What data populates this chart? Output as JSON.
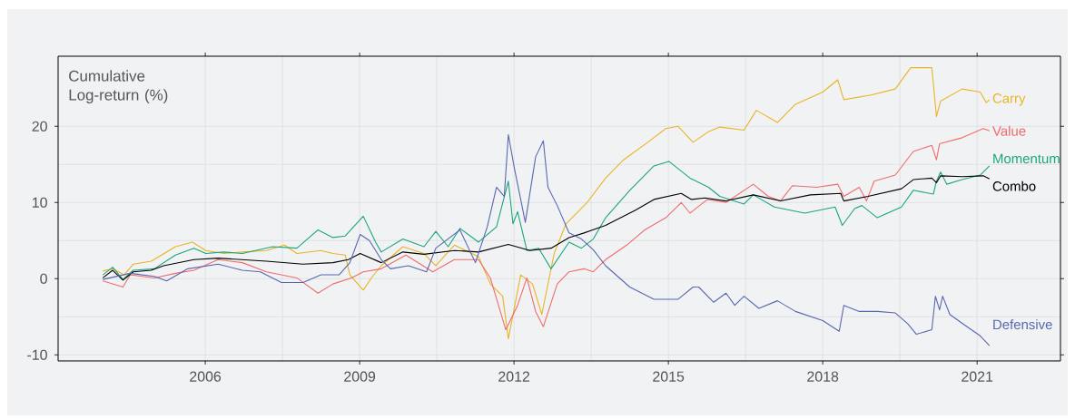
{
  "chart_data": {
    "type": "line",
    "ylabel": "Cumulative Log-return (%)",
    "xlim": [
      2003.14,
      2022.62
    ],
    "ylim": [
      -10.8,
      29.2
    ],
    "xticks": [
      2006,
      2009,
      2012,
      2015,
      2018,
      2021
    ],
    "yticks": [
      -10,
      0,
      10,
      20
    ],
    "grid": true,
    "legend": "right",
    "series": [
      {
        "name": "Carry",
        "color": "#ebb324",
        "x": [
          2004.01,
          2004.2,
          2004.42,
          2004.6,
          2004.95,
          2005.42,
          2005.75,
          2006.01,
          2006.36,
          2006.72,
          2007.19,
          2007.54,
          2007.78,
          2008.25,
          2008.48,
          2008.72,
          2008.81,
          2009.07,
          2009.25,
          2009.42,
          2009.84,
          2010.25,
          2010.48,
          2010.84,
          2011.31,
          2011.54,
          2011.78,
          2011.89,
          2012.13,
          2012.36,
          2012.54,
          2012.78,
          2013.01,
          2013.42,
          2013.78,
          2014.13,
          2014.6,
          2014.95,
          2015.19,
          2015.48,
          2015.78,
          2016.0,
          2016.47,
          2016.71,
          2017.12,
          2017.47,
          2018.0,
          2018.29,
          2018.41,
          2018.94,
          2019.41,
          2019.71,
          2020.12,
          2020.21,
          2020.29,
          2020.71,
          2021.06,
          2021.18,
          2021.24
        ],
        "values": [
          1.0,
          1.3,
          0.5,
          1.9,
          2.3,
          4.2,
          4.8,
          3.7,
          3.3,
          3.5,
          3.7,
          4.4,
          3.3,
          3.7,
          3.3,
          3.1,
          0.5,
          -1.5,
          0.3,
          1.7,
          4.2,
          3.3,
          1.7,
          4.4,
          2.9,
          -0.7,
          -2.3,
          -7.9,
          0.5,
          -0.7,
          -4.7,
          3.3,
          7.2,
          10.0,
          13.2,
          15.6,
          17.9,
          19.7,
          20.0,
          17.9,
          19.3,
          19.9,
          19.5,
          22.1,
          20.5,
          22.9,
          24.5,
          26.1,
          23.5,
          24.1,
          24.9,
          27.7,
          27.7,
          21.3,
          23.3,
          24.9,
          24.5,
          23.1,
          23.5
        ]
      },
      {
        "name": "Value",
        "color": "#f06b6d",
        "x": [
          2004.01,
          2004.4,
          2004.54,
          2005.01,
          2005.42,
          2005.78,
          2006.25,
          2006.72,
          2007.19,
          2007.78,
          2008.19,
          2008.48,
          2008.84,
          2009.07,
          2009.42,
          2009.9,
          2010.42,
          2010.84,
          2011.31,
          2011.54,
          2011.84,
          2012.07,
          2012.25,
          2012.42,
          2012.57,
          2012.84,
          2013.07,
          2013.36,
          2013.54,
          2013.78,
          2014.19,
          2014.54,
          2014.95,
          2015.25,
          2015.42,
          2015.76,
          2016.12,
          2016.65,
          2016.94,
          2017.18,
          2017.41,
          2017.88,
          2018.29,
          2018.41,
          2018.71,
          2018.85,
          2019.0,
          2019.41,
          2019.76,
          2020.12,
          2020.21,
          2020.27,
          2020.71,
          2021.12,
          2021.24
        ],
        "values": [
          -0.3,
          -1.1,
          0.5,
          0.1,
          0.7,
          1.1,
          2.5,
          2.1,
          0.9,
          0.1,
          -1.9,
          -0.7,
          0.1,
          0.9,
          1.3,
          3.1,
          0.9,
          2.5,
          2.5,
          0.1,
          -6.7,
          -3.5,
          0.1,
          -4.3,
          -6.3,
          -0.7,
          0.9,
          1.3,
          0.9,
          2.5,
          4.4,
          6.4,
          8.0,
          10.0,
          8.6,
          10.4,
          10.0,
          12.4,
          10.8,
          10.2,
          12.2,
          12.0,
          12.4,
          10.8,
          12.0,
          10.2,
          12.8,
          13.6,
          16.7,
          17.5,
          15.6,
          17.7,
          18.5,
          19.7,
          19.4
        ]
      },
      {
        "name": "Momentum",
        "color": "#1ba57c",
        "x": [
          2004.01,
          2004.2,
          2004.4,
          2004.6,
          2005.01,
          2005.42,
          2005.78,
          2006.01,
          2006.36,
          2006.72,
          2007.31,
          2007.78,
          2008.19,
          2008.48,
          2008.72,
          2009.07,
          2009.31,
          2009.42,
          2009.84,
          2010.25,
          2010.48,
          2010.72,
          2010.95,
          2011.31,
          2011.66,
          2011.89,
          2011.98,
          2012.07,
          2012.25,
          2012.48,
          2012.72,
          2013.07,
          2013.31,
          2013.54,
          2013.78,
          2014.25,
          2014.72,
          2015.01,
          2015.42,
          2015.78,
          2016.0,
          2016.47,
          2016.65,
          2017.06,
          2017.65,
          2018.24,
          2018.38,
          2018.62,
          2018.76,
          2019.06,
          2019.53,
          2019.76,
          2020.15,
          2020.21,
          2020.29,
          2020.41,
          2020.71,
          2021.06,
          2021.24
        ],
        "values": [
          0.5,
          1.5,
          -0.1,
          1.1,
          1.3,
          3.1,
          4.0,
          3.3,
          3.5,
          3.3,
          4.2,
          4.0,
          6.4,
          5.4,
          5.6,
          8.2,
          4.8,
          3.5,
          5.2,
          4.2,
          6.2,
          4.2,
          6.6,
          4.8,
          6.8,
          12.8,
          7.2,
          8.8,
          3.7,
          4.0,
          1.3,
          4.8,
          4.0,
          5.2,
          8.0,
          11.6,
          14.8,
          15.4,
          13.2,
          12.0,
          10.8,
          9.8,
          11.0,
          9.4,
          8.6,
          9.4,
          7.0,
          9.2,
          9.6,
          8.0,
          9.4,
          11.6,
          11.1,
          12.8,
          14.0,
          12.4,
          13.0,
          13.6,
          14.8
        ]
      },
      {
        "name": "Combo",
        "color": "#000000",
        "x": [
          2004.01,
          2004.2,
          2004.4,
          2004.6,
          2004.95,
          2005.19,
          2005.78,
          2006.25,
          2007.19,
          2007.9,
          2008.48,
          2008.78,
          2009.01,
          2009.42,
          2009.84,
          2010.25,
          2010.84,
          2011.31,
          2011.89,
          2012.31,
          2012.72,
          2013.07,
          2013.36,
          2013.78,
          2014.36,
          2014.72,
          2015.25,
          2015.45,
          2015.71,
          2016.12,
          2016.65,
          2017.18,
          2017.76,
          2018.35,
          2018.41,
          2018.88,
          2019.53,
          2019.76,
          2020.12,
          2020.21,
          2020.29,
          2020.71,
          2021.12,
          2021.24
        ],
        "values": [
          0.1,
          1.1,
          -0.2,
          0.9,
          1.1,
          1.7,
          2.5,
          2.7,
          2.3,
          1.9,
          2.1,
          2.5,
          3.3,
          2.1,
          3.5,
          3.2,
          3.7,
          3.5,
          4.5,
          3.7,
          4.0,
          5.4,
          6.0,
          7.0,
          9.0,
          10.4,
          11.2,
          10.4,
          10.6,
          10.2,
          11.0,
          10.2,
          11.0,
          11.2,
          10.2,
          10.8,
          11.8,
          13.0,
          13.2,
          12.6,
          13.5,
          13.4,
          13.5,
          13.1
        ]
      },
      {
        "name": "Defensive",
        "color": "#5767b0",
        "x": [
          2004.01,
          2004.54,
          2005.01,
          2005.25,
          2005.66,
          2006.25,
          2006.72,
          2007.07,
          2007.48,
          2007.9,
          2008.25,
          2008.6,
          2008.81,
          2009.01,
          2009.19,
          2009.42,
          2009.6,
          2009.95,
          2010.3,
          2010.48,
          2010.95,
          2011.25,
          2011.48,
          2011.66,
          2011.81,
          2011.89,
          2012.01,
          2012.22,
          2012.42,
          2012.57,
          2012.66,
          2012.84,
          2013.07,
          2013.31,
          2013.54,
          2013.78,
          2014.25,
          2014.72,
          2015.19,
          2015.48,
          2015.59,
          2015.88,
          2016.12,
          2016.29,
          2016.47,
          2016.76,
          2017.12,
          2017.47,
          2018.0,
          2018.32,
          2018.41,
          2018.71,
          2019.06,
          2019.41,
          2019.65,
          2019.82,
          2020.12,
          2020.19,
          2020.27,
          2020.33,
          2020.47,
          2020.76,
          2021.06,
          2021.24
        ],
        "values": [
          -0.1,
          0.7,
          0.3,
          -0.3,
          1.3,
          1.9,
          1.1,
          0.9,
          -0.5,
          -0.5,
          0.5,
          0.5,
          2.1,
          5.8,
          5.0,
          2.5,
          1.3,
          1.7,
          0.9,
          4.0,
          6.4,
          2.1,
          6.8,
          12.0,
          10.8,
          18.9,
          14.4,
          7.4,
          16.0,
          18.1,
          12.0,
          9.6,
          6.0,
          5.2,
          3.8,
          1.7,
          -1.1,
          -2.7,
          -2.7,
          -1.1,
          -1.1,
          -3.1,
          -1.9,
          -3.5,
          -2.3,
          -3.9,
          -2.9,
          -4.3,
          -5.5,
          -6.9,
          -3.5,
          -4.3,
          -4.3,
          -4.5,
          -5.9,
          -7.3,
          -6.7,
          -2.3,
          -4.1,
          -2.3,
          -4.7,
          -6.1,
          -7.5,
          -8.8
        ]
      }
    ]
  }
}
